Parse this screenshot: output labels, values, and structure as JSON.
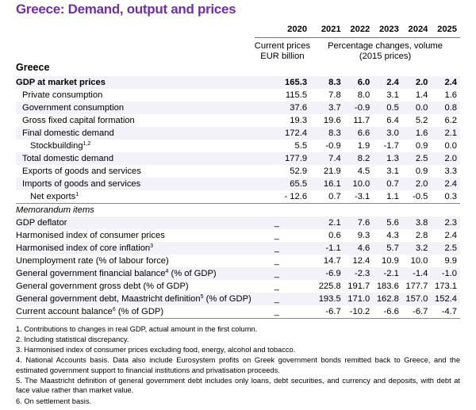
{
  "title": "Greece: Demand, output and prices",
  "table": {
    "stub_label": "Greece",
    "years": [
      "2020",
      "2021",
      "2022",
      "2023",
      "2024",
      "2025"
    ],
    "unit_2020": [
      "Current prices",
      "EUR billion"
    ],
    "unit_rest": [
      "Percentage changes, volume",
      "(2015 prices)"
    ],
    "rows": [
      {
        "label": "GDP at market prices",
        "sup": "",
        "indent": 0,
        "bold": true,
        "values": [
          "165.3",
          "8.3",
          "6.0",
          "2.4",
          "2.0",
          "2.4"
        ]
      },
      {
        "label": "Private consumption",
        "sup": "",
        "indent": 1,
        "values": [
          "115.5",
          "7.8",
          "8.0",
          "3.1",
          "1.4",
          "1.6"
        ]
      },
      {
        "label": "Government consumption",
        "sup": "",
        "indent": 1,
        "values": [
          "37.6",
          "3.7",
          "-0.9",
          "0.5",
          "0.0",
          "0.8"
        ]
      },
      {
        "label": "Gross fixed capital formation",
        "sup": "",
        "indent": 1,
        "values": [
          "19.3",
          "19.6",
          "11.7",
          "6.4",
          "5.2",
          "6.2"
        ]
      },
      {
        "label": "Final domestic demand",
        "sup": "",
        "indent": 1,
        "values": [
          "172.4",
          "8.3",
          "6.6",
          "3.0",
          "1.6",
          "2.1"
        ]
      },
      {
        "label": "Stockbuilding",
        "sup": "1,2",
        "indent": 2,
        "values": [
          "5.5",
          "-0.9",
          "1.9",
          "-1.7",
          "0.9",
          "0.0"
        ]
      },
      {
        "label": "Total domestic demand",
        "sup": "",
        "indent": 1,
        "values": [
          "177.9",
          "7.4",
          "8.2",
          "1.3",
          "2.5",
          "2.0"
        ]
      },
      {
        "label": "Exports of goods and services",
        "sup": "",
        "indent": 1,
        "values": [
          "52.9",
          "21.9",
          "4.5",
          "3.1",
          "0.9",
          "3.3"
        ]
      },
      {
        "label": "Imports of goods and services",
        "sup": "",
        "indent": 1,
        "values": [
          "65.5",
          "16.1",
          "10.0",
          "0.7",
          "2.0",
          "2.4"
        ]
      },
      {
        "label": "Net exports",
        "sup": "1",
        "indent": 2,
        "values": [
          "- 12.6",
          "0.7",
          "-3.1",
          "1.1",
          "-0.5",
          "0.3"
        ]
      }
    ],
    "memo_label": "Memorandum items",
    "memo_rows": [
      {
        "label": "GDP deflator",
        "sup": "",
        "values": [
          "_",
          "2.1",
          "7.6",
          "5.6",
          "3.8",
          "2.3"
        ]
      },
      {
        "label": "Harmonised index of consumer prices",
        "sup": "",
        "values": [
          "_",
          "0.6",
          "9.3",
          "4.3",
          "2.8",
          "2.4"
        ]
      },
      {
        "label": "Harmonised index of core inflation",
        "sup": "3",
        "values": [
          "_",
          "-1.1",
          "4.6",
          "5.7",
          "3.2",
          "2.5"
        ]
      },
      {
        "label": "Unemployment rate (% of labour force)",
        "sup": "",
        "values": [
          "_",
          "14.7",
          "12.4",
          "10.9",
          "10.0",
          "9.9"
        ]
      },
      {
        "label": "General government financial balance",
        "sup": "4",
        "suffix": " (% of GDP)",
        "values": [
          "_",
          "-6.9",
          "-2.3",
          "-2.1",
          "-1.4",
          "-1.0"
        ]
      },
      {
        "label": "General government gross debt (% of GDP)",
        "sup": "",
        "values": [
          "_",
          "225.8",
          "191.7",
          "183.6",
          "177.7",
          "173.1"
        ]
      },
      {
        "label": "General government debt, Maastricht definition",
        "sup": "5",
        "suffix": " (% of GDP)",
        "values": [
          "_",
          "193.5",
          "171.0",
          "162.8",
          "157.0",
          "152.4"
        ]
      },
      {
        "label": "Current account balance",
        "sup": "6",
        "suffix": " (% of GDP)",
        "values": [
          "_",
          "-6.7",
          "-10.2",
          "-6.6",
          "-6.7",
          "-4.7"
        ]
      }
    ]
  },
  "footnotes": [
    "1. Contributions to changes in real GDP, actual amount in the first column.",
    "2. Including statistical discrepancy.",
    "3. Harmonised index of consumer prices excluding food, energy, alcohol and tobacco.",
    "4. National Accounts basis. Data also include Eurosystem profits on Greek government bonds remitted back to Greece, and the estimated government support to financial institutions and privatisation proceeds.",
    "5. The Maastricht definition of general government debt includes only loans, debt securities, and currency and deposits, with debt at face value rather than market value.",
    "6. On settlement basis."
  ],
  "colors": {
    "title": "#7030a0",
    "row_shade": "#f2f2f8"
  }
}
